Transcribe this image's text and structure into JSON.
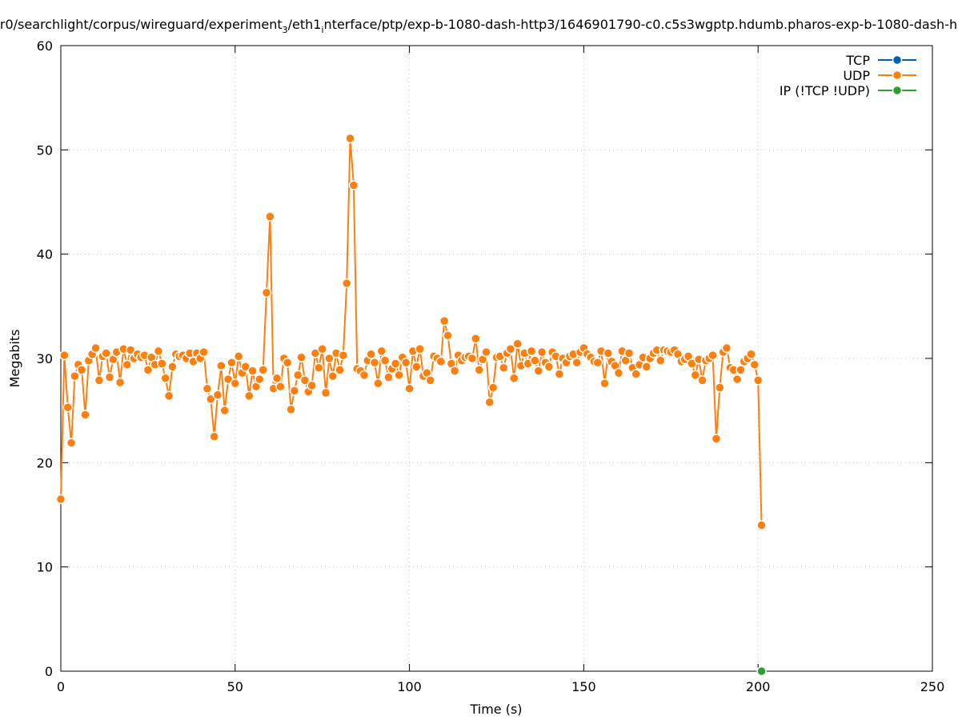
{
  "chart_data": {
    "type": "line",
    "title": [
      "r0/searchlight/corpus/wireguard/experiment",
      "3",
      "/eth1",
      "i",
      "nterface/ptp/exp-b-1080-dash-http3/1646901790-c0.c5s3wgptp.hdumb.pharos-exp-b-1080-dash-h"
    ],
    "xlabel": "Time (s)",
    "ylabel": "Megabits",
    "xlim": [
      0,
      250
    ],
    "xticks": [
      0,
      50,
      100,
      150,
      200,
      250
    ],
    "ylim": [
      0,
      60
    ],
    "yticks": [
      0,
      10,
      20,
      30,
      40,
      50,
      60
    ],
    "grid": true,
    "legend": "top-right",
    "series": [
      {
        "name": "TCP",
        "color": "#0060ad",
        "x": [],
        "values": []
      },
      {
        "name": "UDP",
        "color": "#ff7f0e",
        "x": [
          0,
          1,
          2,
          3,
          4,
          5,
          6,
          7,
          8,
          9,
          10,
          11,
          12,
          13,
          14,
          15,
          16,
          17,
          18,
          19,
          20,
          21,
          22,
          23,
          24,
          25,
          26,
          27,
          28,
          29,
          30,
          31,
          32,
          33,
          34,
          35,
          36,
          37,
          38,
          39,
          40,
          41,
          42,
          43,
          44,
          45,
          46,
          47,
          48,
          49,
          50,
          51,
          52,
          53,
          54,
          55,
          56,
          57,
          58,
          59,
          60,
          61,
          62,
          63,
          64,
          65,
          66,
          67,
          68,
          69,
          70,
          71,
          72,
          73,
          74,
          75,
          76,
          77,
          78,
          79,
          80,
          81,
          82,
          83,
          84,
          85,
          86,
          87,
          88,
          89,
          90,
          91,
          92,
          93,
          94,
          95,
          96,
          97,
          98,
          99,
          100,
          101,
          102,
          103,
          104,
          105,
          106,
          107,
          108,
          109,
          110,
          111,
          112,
          113,
          114,
          115,
          116,
          117,
          118,
          119,
          120,
          121,
          122,
          123,
          124,
          125,
          126,
          127,
          128,
          129,
          130,
          131,
          132,
          133,
          134,
          135,
          136,
          137,
          138,
          139,
          140,
          141,
          142,
          143,
          144,
          145,
          146,
          147,
          148,
          149,
          150,
          151,
          152,
          153,
          154,
          155,
          156,
          157,
          158,
          159,
          160,
          161,
          162,
          163,
          164,
          165,
          166,
          167,
          168,
          169,
          170,
          171,
          172,
          173,
          174,
          175,
          176,
          177,
          178,
          179,
          180,
          181,
          182,
          183,
          184,
          185,
          186,
          187,
          188,
          189,
          190,
          191,
          192,
          193,
          194,
          195,
          196,
          197,
          198,
          199,
          200,
          201
        ],
        "values": [
          16.5,
          30.3,
          25.3,
          21.9,
          28.3,
          29.4,
          28.9,
          24.6,
          29.8,
          30.4,
          31.0,
          27.9,
          30.2,
          30.5,
          28.2,
          29.9,
          30.6,
          27.7,
          30.9,
          29.4,
          30.8,
          30.0,
          30.4,
          30.1,
          30.3,
          28.9,
          30.1,
          29.4,
          30.7,
          29.5,
          28.1,
          26.4,
          29.2,
          30.4,
          30.2,
          30.3,
          30.0,
          30.5,
          29.7,
          30.5,
          30.0,
          30.6,
          27.1,
          26.1,
          22.5,
          26.5,
          29.3,
          25.0,
          28.0,
          29.6,
          27.6,
          30.2,
          28.6,
          29.2,
          26.4,
          28.8,
          27.3,
          28.0,
          28.9,
          36.3,
          43.6,
          27.1,
          28.1,
          27.3,
          30.0,
          29.6,
          25.1,
          26.9,
          28.4,
          30.1,
          27.9,
          26.8,
          27.4,
          30.5,
          29.1,
          30.9,
          26.7,
          30.0,
          28.3,
          30.5,
          28.9,
          30.3,
          37.2,
          51.1,
          46.6,
          29.0,
          28.8,
          28.4,
          29.8,
          30.4,
          29.6,
          27.6,
          30.7,
          29.8,
          28.2,
          29.0,
          29.5,
          28.4,
          30.1,
          29.6,
          27.1,
          30.7,
          29.2,
          30.9,
          28.3,
          28.6,
          27.9,
          30.2,
          30.0,
          29.7,
          33.6,
          32.2,
          29.5,
          28.8,
          30.3,
          29.8,
          30.1,
          30.2,
          30.0,
          31.9,
          28.9,
          29.9,
          30.6,
          25.8,
          27.2,
          30.1,
          30.2,
          29.1,
          30.5,
          30.9,
          28.1,
          31.4,
          29.3,
          30.5,
          29.5,
          30.7,
          29.8,
          28.8,
          30.6,
          29.6,
          29.2,
          30.6,
          30.2,
          28.5,
          30.0,
          29.6,
          30.2,
          30.4,
          29.6,
          30.6,
          31.0,
          30.4,
          30.1,
          29.7,
          29.6,
          30.7,
          27.6,
          30.5,
          29.7,
          29.3,
          28.6,
          30.7,
          29.8,
          30.5,
          29.1,
          28.5,
          29.4,
          30.1,
          29.2,
          30.0,
          30.5,
          30.8,
          29.8,
          30.8,
          30.7,
          30.6,
          30.8,
          30.4,
          29.7,
          29.9,
          30.2,
          29.5,
          28.4,
          29.9,
          27.9,
          29.8,
          30.0,
          30.3,
          22.3,
          27.2,
          30.6,
          31.0,
          29.1,
          28.9,
          28.0,
          28.9,
          29.7,
          30.0,
          30.4,
          29.4,
          27.9,
          14.0
        ]
      },
      {
        "name": "IP (!TCP  !UDP)",
        "color": "#2ca02c",
        "x": [
          201
        ],
        "values": [
          0
        ]
      }
    ]
  }
}
